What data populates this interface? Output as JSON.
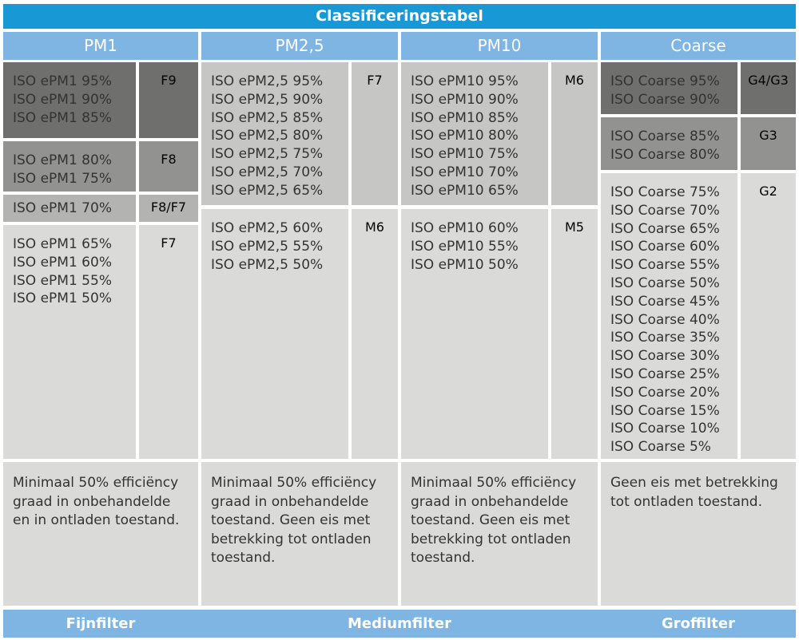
{
  "title": "Classificeringstabel",
  "colors": {
    "title_bar": "#1899D6",
    "header_blue": "#7FB5E2",
    "shade_dark": "#6F6F6D",
    "shade_medium_dark": "#929290",
    "shade_medium": "#B3B3B1",
    "shade_medium_light": "#C6C6C4",
    "shade_light": "#DADAD8",
    "text_dark": "#333333",
    "text_light": "#FFFFFF"
  },
  "columns": [
    {
      "header": "PM1",
      "sections": [
        {
          "labels": "ISO ePM1 95%\nISO ePM1 90%\nISO ePM1 85%",
          "filter_class": "F9",
          "shade": "dark"
        },
        {
          "labels": "ISO ePM1 80%\nISO ePM1 75%",
          "filter_class": "F8",
          "shade": "medium-dark"
        },
        {
          "labels": "ISO ePM1 70%",
          "filter_class": "F8/F7",
          "shade": "medium"
        },
        {
          "labels": "ISO ePM1 65%\nISO ePM1 60%\nISO ePM1 55%\nISO ePM1 50%",
          "filter_class": "F7",
          "shade": "light"
        }
      ],
      "note": "Minimaal 50% efficiëncy graad in onbehandelde en in ontladen toestand."
    },
    {
      "header": "PM2,5",
      "sections": [
        {
          "labels": "ISO ePM2,5 95%\nISO ePM2,5 90%\nISO ePM2,5 85%\nISO ePM2,5 80%\nISO ePM2,5 75%\nISO ePM2,5 70%\nISO ePM2,5 65%",
          "filter_class": "F7",
          "shade": "medium-light"
        },
        {
          "labels": "ISO ePM2,5 60%\nISO ePM2,5 55%\nISO ePM2,5 50%",
          "filter_class": "M6",
          "shade": "light"
        }
      ],
      "note": "Minimaal 50% efficiëncy graad in onbehandelde toestand. Geen eis met betrekking tot ontladen toestand."
    },
    {
      "header": "PM10",
      "sections": [
        {
          "labels": "ISO ePM10 95%\nISO ePM10 90%\nISO ePM10 85%\nISO ePM10 80%\nISO ePM10 75%\nISO ePM10 70%\nISO ePM10 65%",
          "filter_class": "M6",
          "shade": "medium-light"
        },
        {
          "labels": "ISO ePM10 60%\nISO ePM10 55%\nISO ePM10 50%",
          "filter_class": "M5",
          "shade": "light"
        }
      ],
      "note": "Minimaal 50% efficiëncy graad in onbehandelde toestand. Geen eis met betrekking tot ontladen toestand."
    },
    {
      "header": "Coarse",
      "sections": [
        {
          "labels": "ISO Coarse 95%\nISO Coarse 90%",
          "filter_class": "G4/G3",
          "shade": "dark"
        },
        {
          "labels": "ISO Coarse 85%\nISO Coarse 80%",
          "filter_class": "G3",
          "shade": "medium-dark"
        },
        {
          "labels": "ISO Coarse 75%\nISO Coarse 70%\nISO Coarse 65%\nISO Coarse 60%\nISO Coarse 55%\nISO Coarse 50%\nISO Coarse 45%\nISO Coarse 40%\nISO Coarse 35%\nISO Coarse 30%\nISO Coarse 25%\nISO Coarse 20%\nISO Coarse 15%\nISO Coarse 10%\nISO Coarse 5%",
          "filter_class": "G2",
          "shade": "light"
        }
      ],
      "note": "Geen eis met betrekking tot ontladen toestand."
    }
  ],
  "footer": {
    "fijnfilter": "Fijnfilter",
    "mediumfilter": "Mediumfilter",
    "groffilter": "Groffilter"
  }
}
